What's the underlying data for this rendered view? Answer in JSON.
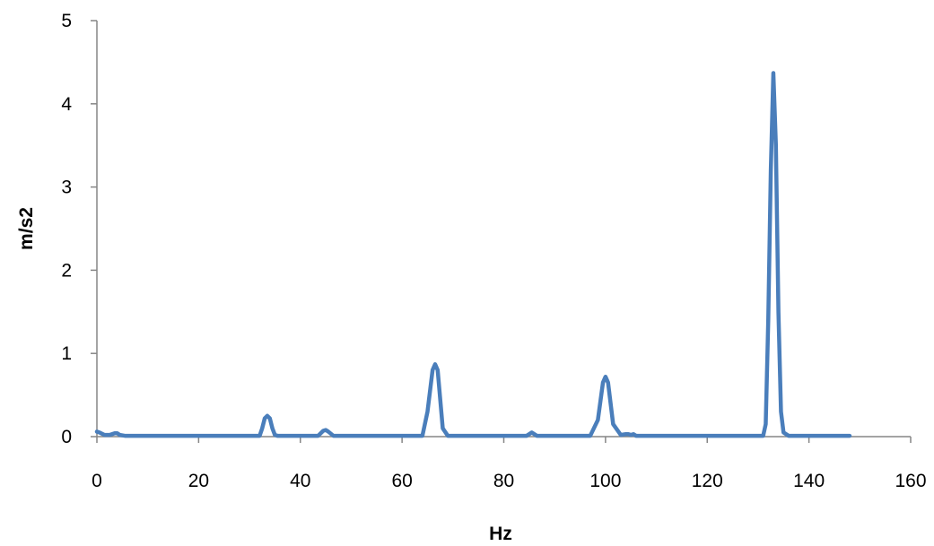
{
  "chart_data": {
    "type": "line",
    "title": "",
    "xlabel": "Hz",
    "ylabel": "m/s2",
    "xlim": [
      0,
      160
    ],
    "ylim": [
      0,
      5
    ],
    "xticks": [
      0,
      20,
      40,
      60,
      80,
      100,
      120,
      140,
      160
    ],
    "yticks": [
      0,
      1,
      2,
      3,
      4,
      5
    ],
    "grid": false,
    "legend": "none",
    "series": [
      {
        "color": "#4a7ebb",
        "x": [
          0,
          0.5,
          1.5,
          2.5,
          3.5,
          4,
          4.5,
          5.5,
          8,
          20,
          32,
          32.5,
          33,
          33.5,
          34,
          34.5,
          35,
          35.5,
          36,
          40,
          43.5,
          44.5,
          45,
          45.5,
          46.5,
          50,
          64,
          65,
          66,
          66.5,
          67,
          68,
          69,
          80,
          84.5,
          85.5,
          86.5,
          90,
          97,
          98.5,
          99.5,
          100,
          100.5,
          101.5,
          103,
          104,
          104.5,
          105,
          105.5,
          106,
          120,
          131,
          131.5,
          132,
          132.5,
          133,
          133.5,
          134,
          134.5,
          135,
          136,
          140,
          146,
          148
        ],
        "y": [
          0.06,
          0.05,
          0.02,
          0.02,
          0.04,
          0.04,
          0.02,
          0.01,
          0.01,
          0.01,
          0.01,
          0.1,
          0.22,
          0.25,
          0.22,
          0.1,
          0.02,
          0.01,
          0.01,
          0.01,
          0.01,
          0.07,
          0.08,
          0.06,
          0.01,
          0.01,
          0.01,
          0.3,
          0.8,
          0.87,
          0.8,
          0.1,
          0.01,
          0.01,
          0.01,
          0.05,
          0.01,
          0.01,
          0.01,
          0.2,
          0.65,
          0.72,
          0.65,
          0.15,
          0.02,
          0.03,
          0.03,
          0.02,
          0.03,
          0.01,
          0.01,
          0.01,
          0.15,
          1.4,
          3.2,
          4.37,
          3.5,
          1.5,
          0.3,
          0.05,
          0.01,
          0.01,
          0.01,
          0.01
        ]
      }
    ]
  }
}
